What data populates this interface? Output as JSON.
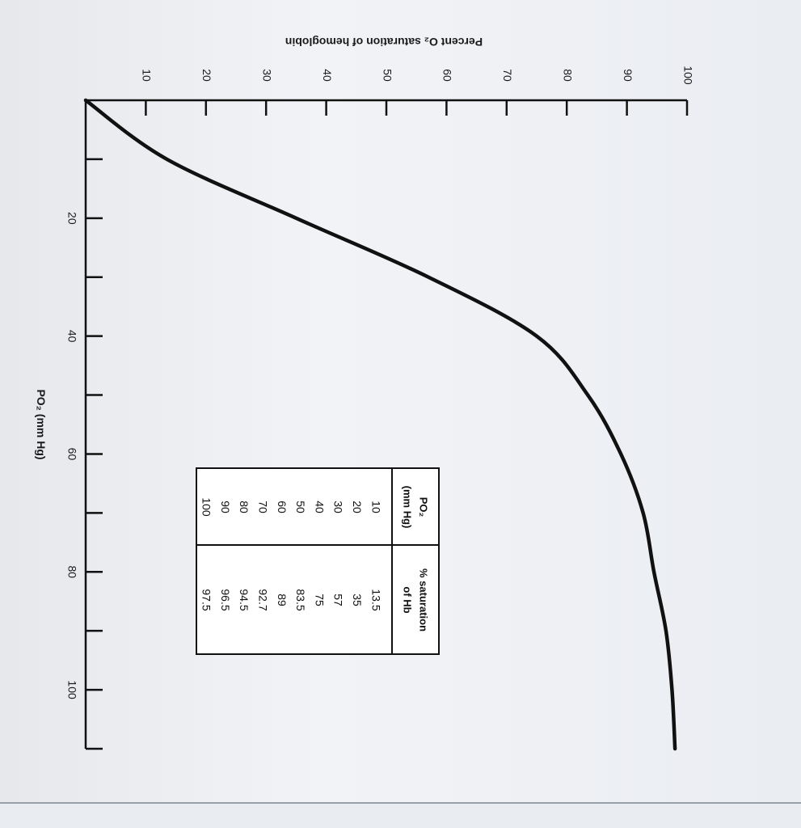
{
  "chart_data": {
    "type": "line",
    "title": "Percent O₂ saturation of hemoglobin",
    "xlabel": "P₀₂ (mm Hg)",
    "x_axis_label": "PO₂ (mm Hg)",
    "y_axis_label": "Percent O₂ saturation of hemoglobin",
    "xlim": [
      0,
      110
    ],
    "ylim": [
      0,
      100
    ],
    "x_ticks": [
      20,
      40,
      60,
      80,
      100
    ],
    "y_ticks": [
      10,
      20,
      30,
      40,
      50,
      60,
      70,
      80,
      90,
      100
    ],
    "grid": false,
    "series": [
      {
        "x": [
          0,
          10,
          20,
          30,
          40,
          50,
          60,
          70,
          80,
          90,
          100,
          110
        ],
        "values": [
          0,
          13.5,
          35,
          57,
          75,
          83.5,
          89,
          92.7,
          94.5,
          96.5,
          97.5,
          98
        ]
      }
    ],
    "table": {
      "headers": [
        "PO₂ (mm Hg)",
        "% saturation of Hb"
      ],
      "header_lines": [
        [
          "P",
          "O₂",
          "(mm Hg)"
        ],
        [
          "% saturation",
          "of Hb"
        ]
      ],
      "rows": [
        [
          "10",
          "13.5"
        ],
        [
          "20",
          "35"
        ],
        [
          "30",
          "57"
        ],
        [
          "40",
          "75"
        ],
        [
          "50",
          "83.5"
        ],
        [
          "60",
          "89"
        ],
        [
          "70",
          "92.7"
        ],
        [
          "80",
          "94.5"
        ],
        [
          "90",
          "96.5"
        ],
        [
          "100",
          "97.5"
        ]
      ]
    }
  }
}
